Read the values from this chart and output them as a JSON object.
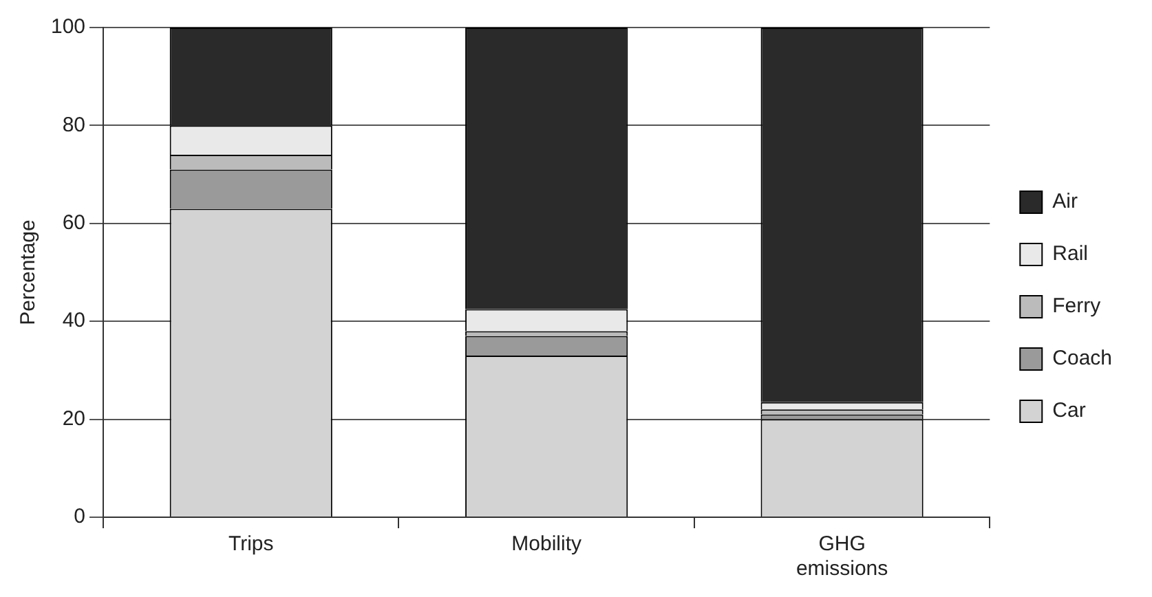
{
  "chart_data": {
    "type": "bar",
    "stacked": true,
    "ylabel": "Percentage",
    "categories": [
      "Trips",
      "Mobility",
      "GHG emissions"
    ],
    "ylim": [
      0,
      100
    ],
    "yticks": [
      0,
      20,
      40,
      60,
      80,
      100
    ],
    "grid": "y",
    "legend": "right",
    "series": [
      {
        "name": "Car",
        "color": "#d3d3d3",
        "values": [
          63,
          33,
          20
        ]
      },
      {
        "name": "Coach",
        "color": "#9a9a9a",
        "values": [
          8,
          4,
          1
        ]
      },
      {
        "name": "Ferry",
        "color": "#bbbbbb",
        "values": [
          3,
          1,
          1
        ]
      },
      {
        "name": "Rail",
        "color": "#e9e9e9",
        "values": [
          6,
          4.5,
          1.5
        ]
      },
      {
        "name": "Air",
        "color": "#2a2a2a",
        "values": [
          20,
          57.5,
          76.5
        ]
      }
    ]
  }
}
